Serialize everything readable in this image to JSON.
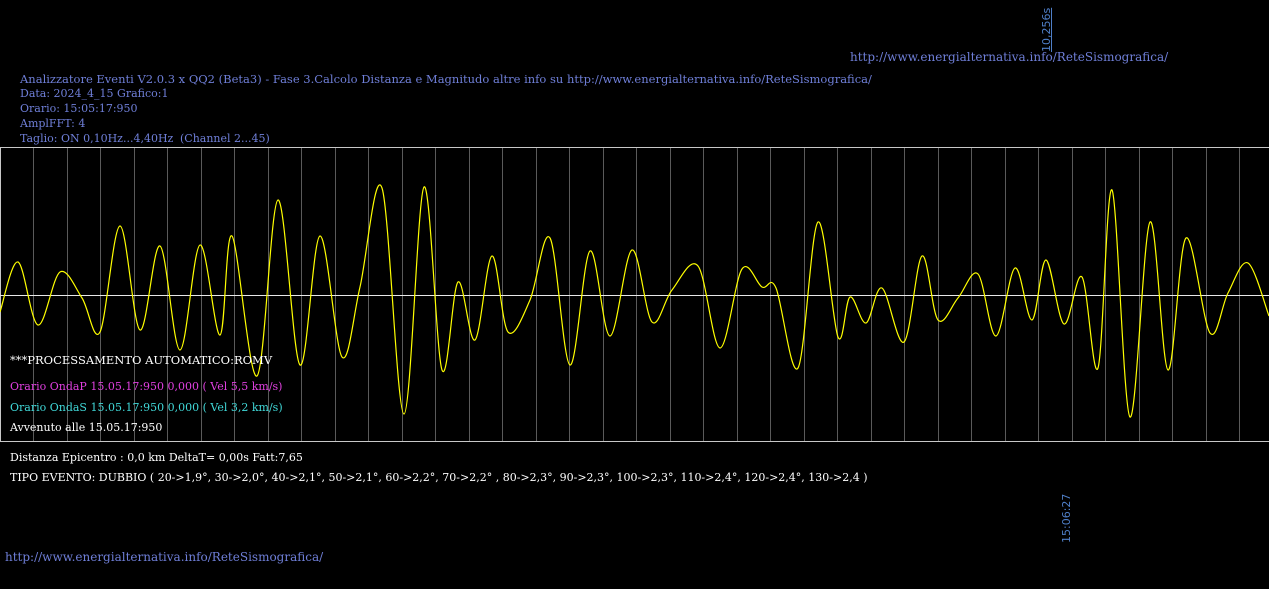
{
  "header": {
    "top_url": "http://www.energialternativa.info/ReteSismografica/",
    "vertical_top": "10,256s",
    "title_line": "Analizzatore Eventi V2.0.3 x QQ2 (Beta3) - Fase 3.Calcolo Distanza e Magnitudo altre info su http://www.energialternativa.info/ReteSismografica/",
    "data_line": "Data: 2024_4_15 Grafico:1",
    "orario_line": "Orario: 15:05:17:950",
    "ampl_line": "AmplFFT: 4",
    "taglio_line": "Taglio: ON 0,10Hz...4,40Hz",
    "channel_line": "(Channel 2...45)"
  },
  "overlay": {
    "processing": "***PROCESSAMENTO AUTOMATICO:ROMV",
    "onda_p": "Orario OndaP 15.05.17:950  0,000 ( Vel 5,5 km/s)",
    "onda_s": "Orario OndaS 15.05.17:950  0,000 ( Vel 3,2 km/s)",
    "avvenuto": "Avvenuto alle 15.05.17:950"
  },
  "footer": {
    "distanza": "Distanza Epicentro : 0,0 km DeltaT= 0,00s  Fatt:7,65",
    "tipo_evento": "TIPO EVENTO: DUBBIO ( 20->1,9°, 30->2,0°, 40->2,1°, 50->2,1°, 60->2,2°, 70->2,2° , 80->2,3°, 90->2,3°, 100->2,3°, 110->2,4°, 120->2,4°, 130->2,4 )",
    "vertical_time": "15:06:27",
    "bottom_url": "http://www.energialternativa.info/ReteSismografica/"
  },
  "colors": {
    "trace": "#ffff00",
    "grid": "#5a5a5a",
    "frame": "#c8c8c8",
    "baseline": "#e8e8e8",
    "text_blue": "#6f7fd8",
    "onda_p": "#e040e0",
    "onda_s": "#40d8d8"
  },
  "chart_data": {
    "type": "line",
    "title": "",
    "xlabel": "",
    "ylabel": "",
    "grid": true,
    "series": [
      {
        "color": "#ffff00",
        "points": [
          [
            0,
            312
          ],
          [
            18,
            262
          ],
          [
            38,
            325
          ],
          [
            60,
            272
          ],
          [
            82,
            298
          ],
          [
            100,
            332
          ],
          [
            120,
            226
          ],
          [
            140,
            330
          ],
          [
            160,
            246
          ],
          [
            180,
            350
          ],
          [
            200,
            245
          ],
          [
            220,
            335
          ],
          [
            232,
            236
          ],
          [
            257,
            376
          ],
          [
            278,
            200
          ],
          [
            300,
            365
          ],
          [
            320,
            236
          ],
          [
            342,
            357
          ],
          [
            360,
            287
          ],
          [
            382,
            188
          ],
          [
            404,
            414
          ],
          [
            424,
            187
          ],
          [
            442,
            370
          ],
          [
            458,
            282
          ],
          [
            475,
            340
          ],
          [
            492,
            256
          ],
          [
            508,
            332
          ],
          [
            530,
            300
          ],
          [
            550,
            238
          ],
          [
            570,
            365
          ],
          [
            590,
            251
          ],
          [
            610,
            336
          ],
          [
            632,
            250
          ],
          [
            652,
            322
          ],
          [
            672,
            290
          ],
          [
            698,
            266
          ],
          [
            720,
            348
          ],
          [
            742,
            269
          ],
          [
            762,
            287
          ],
          [
            776,
            288
          ],
          [
            798,
            368
          ],
          [
            818,
            222
          ],
          [
            838,
            337
          ],
          [
            850,
            297
          ],
          [
            866,
            323
          ],
          [
            882,
            288
          ],
          [
            904,
            342
          ],
          [
            922,
            256
          ],
          [
            938,
            320
          ],
          [
            958,
            298
          ],
          [
            978,
            274
          ],
          [
            996,
            336
          ],
          [
            1015,
            268
          ],
          [
            1032,
            320
          ],
          [
            1046,
            260
          ],
          [
            1064,
            324
          ],
          [
            1082,
            277
          ],
          [
            1098,
            368
          ],
          [
            1112,
            190
          ],
          [
            1130,
            417
          ],
          [
            1150,
            222
          ],
          [
            1168,
            370
          ],
          [
            1186,
            238
          ],
          [
            1210,
            333
          ],
          [
            1228,
            293
          ],
          [
            1248,
            263
          ],
          [
            1269,
            316
          ]
        ]
      }
    ]
  }
}
